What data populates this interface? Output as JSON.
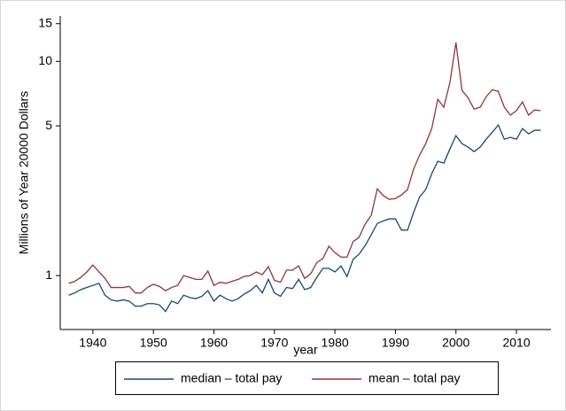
{
  "chart_data": {
    "type": "line",
    "ylabel": "Millions of Year 20000 Dollars",
    "xlabel": "year",
    "x": [
      1936,
      1937,
      1938,
      1939,
      1940,
      1941,
      1942,
      1943,
      1944,
      1945,
      1946,
      1947,
      1948,
      1949,
      1950,
      1951,
      1952,
      1953,
      1954,
      1955,
      1956,
      1957,
      1958,
      1959,
      1960,
      1961,
      1962,
      1963,
      1964,
      1965,
      1966,
      1967,
      1968,
      1969,
      1970,
      1971,
      1972,
      1973,
      1974,
      1975,
      1976,
      1977,
      1978,
      1979,
      1980,
      1981,
      1982,
      1983,
      1984,
      1985,
      1986,
      1987,
      1988,
      1989,
      1990,
      1991,
      1992,
      1993,
      1994,
      1995,
      1996,
      1997,
      1998,
      1999,
      2000,
      2001,
      2002,
      2003,
      2004,
      2005,
      2006,
      2007,
      2008,
      2009,
      2010,
      2011,
      2012,
      2013,
      2014
    ],
    "series": [
      {
        "name": "median – total pay",
        "color": "#1a476f",
        "values": [
          0.81,
          0.83,
          0.86,
          0.88,
          0.9,
          0.92,
          0.81,
          0.77,
          0.76,
          0.77,
          0.76,
          0.72,
          0.72,
          0.74,
          0.74,
          0.73,
          0.68,
          0.76,
          0.74,
          0.81,
          0.79,
          0.78,
          0.8,
          0.85,
          0.76,
          0.81,
          0.78,
          0.76,
          0.78,
          0.82,
          0.85,
          0.9,
          0.83,
          0.96,
          0.83,
          0.8,
          0.88,
          0.87,
          0.96,
          0.86,
          0.88,
          0.98,
          1.08,
          1.08,
          1.04,
          1.11,
          0.99,
          1.19,
          1.26,
          1.38,
          1.55,
          1.75,
          1.8,
          1.84,
          1.84,
          1.63,
          1.63,
          1.97,
          2.33,
          2.52,
          2.99,
          3.42,
          3.35,
          3.9,
          4.5,
          4.13,
          3.98,
          3.79,
          3.98,
          4.33,
          4.67,
          5.05,
          4.33,
          4.42,
          4.33,
          4.86,
          4.59,
          4.77,
          4.77
        ]
      },
      {
        "name": "mean – total pay",
        "color": "#90353b",
        "values": [
          0.92,
          0.94,
          0.98,
          1.04,
          1.12,
          1.04,
          0.97,
          0.88,
          0.88,
          0.88,
          0.89,
          0.83,
          0.83,
          0.88,
          0.91,
          0.89,
          0.85,
          0.88,
          0.9,
          1.0,
          0.98,
          0.96,
          0.96,
          1.05,
          0.9,
          0.93,
          0.92,
          0.94,
          0.96,
          0.99,
          1.0,
          1.04,
          1.01,
          1.1,
          0.95,
          0.93,
          1.06,
          1.06,
          1.11,
          0.97,
          1.02,
          1.15,
          1.2,
          1.37,
          1.28,
          1.22,
          1.22,
          1.44,
          1.51,
          1.74,
          1.91,
          2.54,
          2.36,
          2.27,
          2.29,
          2.38,
          2.52,
          3.14,
          3.65,
          4.13,
          4.86,
          6.65,
          6.11,
          7.96,
          12.25,
          7.31,
          6.77,
          5.99,
          6.11,
          6.84,
          7.38,
          7.24,
          6.11,
          5.61,
          5.89,
          6.47,
          5.61,
          5.93,
          5.89
        ]
      }
    ],
    "xlim": [
      1934.6,
      2015.7
    ],
    "xticks": [
      1940,
      1950,
      1960,
      1970,
      1980,
      1990,
      2000,
      2010
    ],
    "ylim": [
      0.56,
      16.3
    ],
    "yticks": [
      1,
      5,
      10,
      15
    ],
    "yscale": "log",
    "grid": false,
    "legend": "bottom"
  }
}
